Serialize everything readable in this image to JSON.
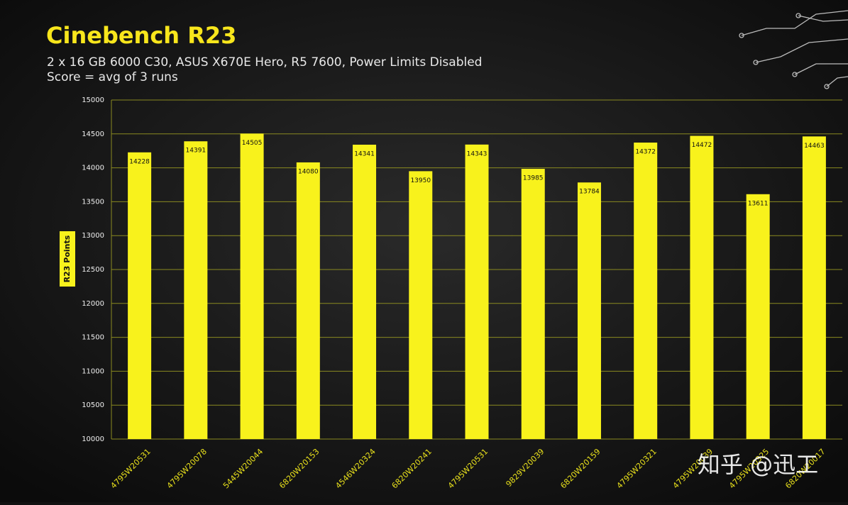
{
  "chart_data": {
    "type": "bar",
    "title": "Cinebench R23",
    "subtitle": [
      "2 x 16 GB 6000 C30, ASUS X670E Hero,  R5 7600, Power Limits Disabled",
      "Score = avg of 3 runs"
    ],
    "y_label": "R23 Points",
    "categories": [
      "4795W20531",
      "4795W20078",
      "5445W20044",
      "6820W20153",
      "4546W20324",
      "6820W20241",
      "4795W20531",
      "9829V20039",
      "6820W20159",
      "4795W20321",
      "4795W20039",
      "4795W20325",
      "6820W20017"
    ],
    "values": [
      14228,
      14391,
      14505,
      14080,
      14341,
      13950,
      14343,
      13985,
      13784,
      14372,
      14472,
      13611,
      14463
    ],
    "color": "#f8f21c",
    "ylim": [
      10000,
      15000
    ],
    "yticks": [
      10000,
      10500,
      11000,
      11500,
      12000,
      12500,
      13000,
      13500,
      14000,
      14500,
      15000
    ],
    "grid": true,
    "watermark": "知乎 @迅工"
  }
}
